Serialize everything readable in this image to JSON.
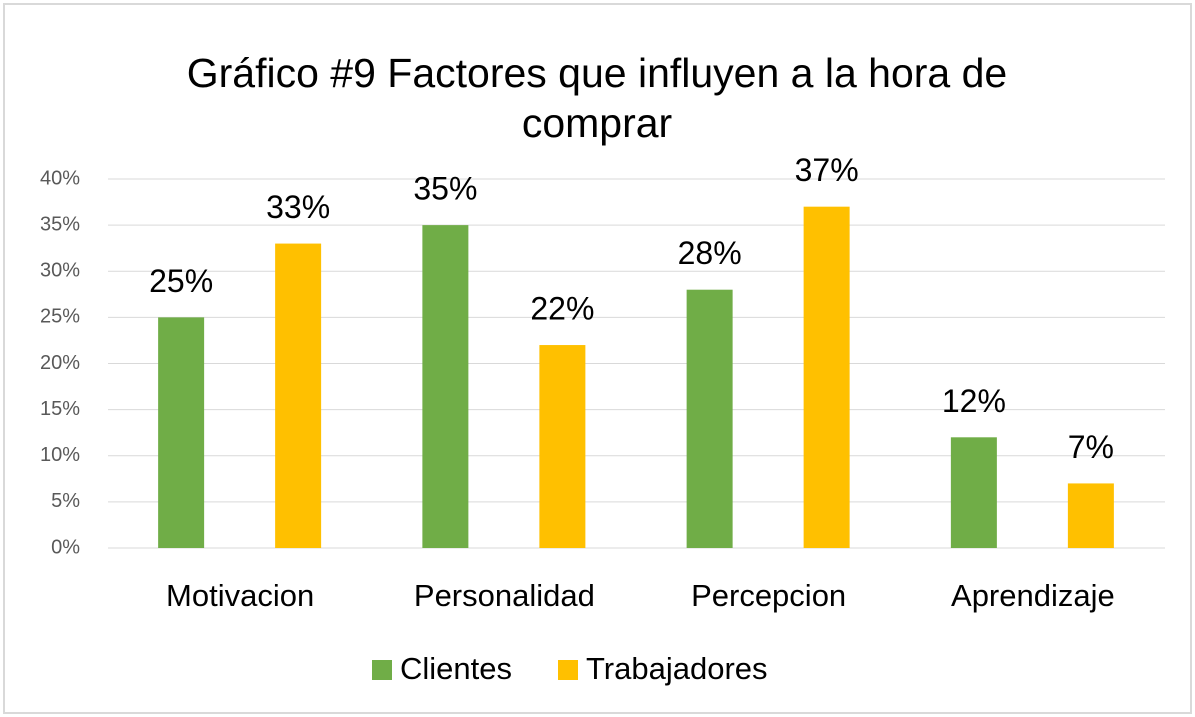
{
  "chart_data": {
    "type": "bar",
    "title": "Gráfico #9 Factores que influyen a la hora de comprar",
    "categories": [
      "Motivacion",
      "Personalidad",
      "Percepcion",
      "Aprendizaje"
    ],
    "series": [
      {
        "name": "Clientes",
        "color": "#70ad47",
        "values": [
          25,
          35,
          28,
          12
        ],
        "value_labels": [
          "25%",
          "35%",
          "28%",
          "12%"
        ]
      },
      {
        "name": "Trabajadores",
        "color": "#ffc000",
        "values": [
          33,
          22,
          37,
          7
        ],
        "value_labels": [
          "33%",
          "22%",
          "37%",
          "7%"
        ]
      }
    ],
    "ylim": [
      0,
      40
    ],
    "yticks": [
      {
        "value": 0,
        "label": "0%"
      },
      {
        "value": 5,
        "label": "5%"
      },
      {
        "value": 10,
        "label": "10%"
      },
      {
        "value": 15,
        "label": "15%"
      },
      {
        "value": 20,
        "label": "20%"
      },
      {
        "value": 25,
        "label": "25%"
      },
      {
        "value": 30,
        "label": "30%"
      },
      {
        "value": 35,
        "label": "35%"
      },
      {
        "value": 40,
        "label": "40%"
      }
    ],
    "grid": true,
    "legend": "bottom"
  }
}
